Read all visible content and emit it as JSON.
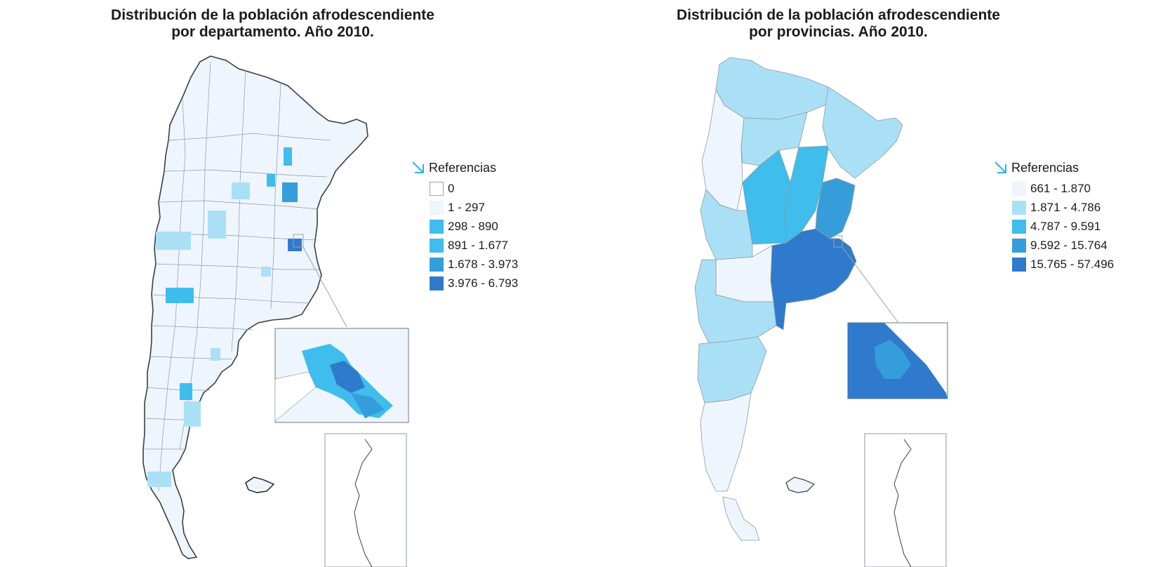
{
  "maps": [
    {
      "title_line1": "Distribución de la población afrodescendiente",
      "title_line2": "por departamento. Año 2010.",
      "legend": {
        "title": "Referencias",
        "items": [
          {
            "label": "0",
            "color": "#ffffff"
          },
          {
            "label": "1 - 297",
            "color": "#eef5fc"
          },
          {
            "label": "298 - 890",
            "color": "#3fbdec"
          },
          {
            "label": "891 - 1.677",
            "color": "#3fbdec"
          },
          {
            "label": "1.678 - 3.973",
            "color": "#369ddb"
          },
          {
            "label": "3.976 - 6.793",
            "color": "#2f7acc"
          }
        ]
      }
    },
    {
      "title_line1": "Distribución de la población afrodescendiente",
      "title_line2": "por provincias. Año 2010.",
      "legend": {
        "title": "Referencias",
        "items": [
          {
            "label": "661 - 1.870",
            "color": "#eef5fc"
          },
          {
            "label": "1.871 - 4.786",
            "color": "#a9e0f6"
          },
          {
            "label": "4.787 - 9.591",
            "color": "#3fbdec"
          },
          {
            "label": "9.592 - 15.764",
            "color": "#369ddb"
          },
          {
            "label": "15.765 - 57.496",
            "color": "#2f7acc"
          }
        ]
      }
    }
  ],
  "arrow_color": "#2bb2e6",
  "border_color": "#5a6570"
}
